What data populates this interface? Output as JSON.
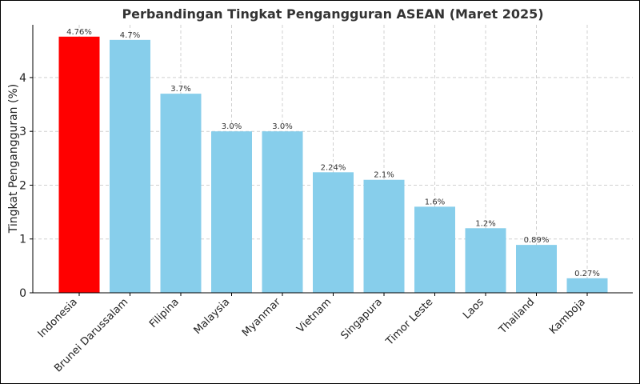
{
  "chart_data": {
    "type": "bar",
    "title": "Perbandingan Tingkat Pengangguran ASEAN (Maret 2025)",
    "xlabel": "",
    "ylabel": "Tingkat Pengangguran (%)",
    "ylim": [
      0,
      4.98
    ],
    "yticks": [
      "0",
      "1",
      "2",
      "3",
      "4"
    ],
    "grid": true,
    "categories": [
      "Indonesia",
      "Brunei Darussalam",
      "Filipina",
      "Malaysia",
      "Myanmar",
      "Vietnam",
      "Singapura",
      "Timor Leste",
      "Laos",
      "Thailand",
      "Kamboja"
    ],
    "values": [
      4.76,
      4.7,
      3.7,
      3.0,
      3.0,
      2.24,
      2.1,
      1.6,
      1.2,
      0.89,
      0.27
    ],
    "value_labels": [
      "4.76%",
      "4.7%",
      "3.7%",
      "3.0%",
      "3.0%",
      "2.24%",
      "2.1%",
      "1.6%",
      "1.2%",
      "0.89%",
      "0.27%"
    ],
    "colors": [
      "#ff0000",
      "#87ceeb",
      "#87ceeb",
      "#87ceeb",
      "#87ceeb",
      "#87ceeb",
      "#87ceeb",
      "#87ceeb",
      "#87ceeb",
      "#87ceeb",
      "#87ceeb"
    ]
  }
}
